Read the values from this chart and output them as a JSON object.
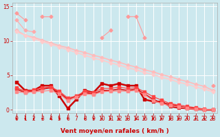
{
  "bg_color": "#cce8ee",
  "grid_color": "#ffffff",
  "x_labels": [
    "0",
    "1",
    "2",
    "3",
    "4",
    "5",
    "6",
    "7",
    "8",
    "9",
    "10",
    "11",
    "12",
    "13",
    "14",
    "15",
    "16",
    "17",
    "18",
    "19",
    "20",
    "21",
    "22",
    "23"
  ],
  "x_values": [
    0,
    1,
    2,
    3,
    4,
    5,
    6,
    7,
    8,
    9,
    10,
    11,
    12,
    13,
    14,
    15,
    16,
    17,
    18,
    19,
    20,
    21,
    22,
    23
  ],
  "ylim": [
    -0.5,
    15.5
  ],
  "yticks": [
    0,
    5,
    10,
    15
  ],
  "xlabel": "Vent moyen/en rafales ( km/h )",
  "lines": [
    {
      "color": "#ff9999",
      "lw": 0.8,
      "marker": "D",
      "ms": 2.5,
      "data": [
        14.0,
        13.0,
        null,
        13.5,
        13.5,
        null,
        null,
        null,
        null,
        null,
        10.5,
        11.5,
        null,
        13.5,
        13.5,
        10.5,
        null,
        null,
        null,
        null,
        null,
        null,
        null,
        3.5
      ]
    },
    {
      "color": "#ffaaaa",
      "lw": 0.8,
      "marker": "D",
      "ms": 2.5,
      "data": [
        13.0,
        11.5,
        11.3,
        null,
        null,
        null,
        null,
        null,
        null,
        null,
        null,
        null,
        null,
        null,
        null,
        null,
        null,
        null,
        null,
        null,
        null,
        null,
        null,
        null
      ]
    },
    {
      "color": "#ffbbbb",
      "lw": 1.2,
      "marker": "D",
      "ms": 2.5,
      "data": [
        11.5,
        10.8,
        10.5,
        10.1,
        9.7,
        9.3,
        9.0,
        8.6,
        8.3,
        7.9,
        7.6,
        7.2,
        6.9,
        6.5,
        6.2,
        5.8,
        5.5,
        5.1,
        4.8,
        4.4,
        4.1,
        3.7,
        3.4,
        2.8
      ]
    },
    {
      "color": "#ffcccc",
      "lw": 1.2,
      "marker": "D",
      "ms": 2.5,
      "data": [
        11.3,
        10.8,
        10.3,
        9.9,
        9.5,
        9.1,
        8.7,
        8.3,
        7.9,
        7.5,
        7.2,
        6.8,
        6.5,
        6.1,
        5.8,
        5.4,
        5.1,
        4.7,
        4.4,
        4.0,
        3.7,
        3.3,
        3.0,
        2.6
      ]
    },
    {
      "color": "#cc0000",
      "lw": 1.8,
      "marker": "s",
      "ms": 2.5,
      "data": [
        4.0,
        2.8,
        2.8,
        3.5,
        3.5,
        2.0,
        0.2,
        1.5,
        2.8,
        2.5,
        3.8,
        3.5,
        3.8,
        3.5,
        3.5,
        1.5,
        1.2,
        1.2,
        0.5,
        0.3,
        0.2,
        0.1,
        0.0,
        0.0
      ]
    },
    {
      "color": "#dd2222",
      "lw": 1.4,
      "marker": "s",
      "ms": 2.5,
      "data": [
        3.0,
        2.5,
        2.7,
        3.0,
        3.2,
        2.5,
        1.5,
        2.0,
        2.5,
        2.3,
        2.8,
        2.8,
        3.0,
        2.8,
        3.0,
        2.3,
        1.5,
        1.0,
        0.8,
        0.5,
        0.3,
        0.2,
        0.0,
        0.0
      ]
    },
    {
      "color": "#ff4444",
      "lw": 0.9,
      "marker": "s",
      "ms": 2.5,
      "data": [
        3.2,
        2.7,
        2.9,
        3.2,
        3.3,
        2.7,
        1.7,
        2.0,
        2.7,
        2.5,
        3.1,
        3.1,
        3.3,
        3.1,
        3.2,
        2.6,
        1.9,
        1.4,
        0.9,
        0.7,
        0.5,
        0.3,
        0.1,
        0.0
      ]
    },
    {
      "color": "#ff8888",
      "lw": 0.9,
      "marker": "s",
      "ms": 2.5,
      "data": [
        2.6,
        2.5,
        2.6,
        2.7,
        2.8,
        2.3,
        1.3,
        1.8,
        2.3,
        2.2,
        2.6,
        2.7,
        2.7,
        2.7,
        2.8,
        2.2,
        1.3,
        0.9,
        0.6,
        0.4,
        0.2,
        0.1,
        0.0,
        0.0
      ]
    }
  ],
  "arrows_x": [
    0,
    1,
    2,
    3,
    4,
    5,
    6,
    8,
    9,
    10,
    11,
    12,
    13,
    14,
    15,
    16,
    17,
    18,
    19,
    20,
    21,
    22,
    23
  ],
  "xlabel_fontsize": 6.5,
  "tick_fontsize": 5.5
}
